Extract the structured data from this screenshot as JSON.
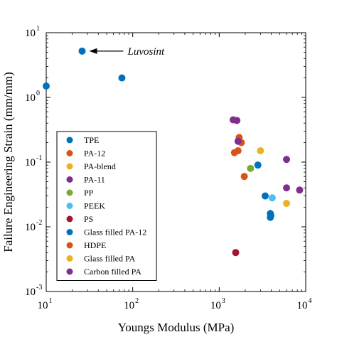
{
  "chart_data": {
    "type": "scatter",
    "title": "",
    "xlabel": "Youngs Modulus (MPa)",
    "ylabel": "Failure Engineering Strain (mm/mm)",
    "xscale": "log",
    "yscale": "log",
    "xlim": [
      10,
      10000
    ],
    "ylim": [
      0.001,
      10
    ],
    "grid": false,
    "legend_position": "bottom-left",
    "x_ticks": [
      {
        "base": "10",
        "exp": "1",
        "value": 10
      },
      {
        "base": "10",
        "exp": "2",
        "value": 100
      },
      {
        "base": "10",
        "exp": "3",
        "value": 1000
      },
      {
        "base": "10",
        "exp": "4",
        "value": 10000
      }
    ],
    "y_ticks": [
      {
        "base": "10",
        "exp": "-3",
        "value": 0.001
      },
      {
        "base": "10",
        "exp": "-2",
        "value": 0.01
      },
      {
        "base": "10",
        "exp": "-1",
        "value": 0.1
      },
      {
        "base": "10",
        "exp": "0",
        "value": 1
      },
      {
        "base": "10",
        "exp": "1",
        "value": 10
      }
    ],
    "annotation": {
      "text": "Luvosint",
      "x": 26,
      "y": 5.2
    },
    "series": [
      {
        "name": "TPE",
        "color": "#0072BD",
        "points": [
          [
            10,
            1.5
          ],
          [
            26,
            5.2
          ],
          [
            75,
            2.0
          ],
          [
            2800,
            0.09
          ]
        ]
      },
      {
        "name": "PA-12",
        "color": "#D95319",
        "points": [
          [
            1500,
            0.14
          ],
          [
            1650,
            0.15
          ],
          [
            1700,
            0.24
          ],
          [
            1800,
            0.2
          ]
        ]
      },
      {
        "name": "PA-blend",
        "color": "#EDB120",
        "points": [
          [
            3000,
            0.15
          ]
        ]
      },
      {
        "name": "PA-11",
        "color": "#7E2F8E",
        "points": [
          [
            1450,
            0.45
          ],
          [
            1600,
            0.44
          ],
          [
            1650,
            0.21
          ],
          [
            6000,
            0.11
          ],
          [
            6000,
            0.04
          ],
          [
            8500,
            0.037
          ]
        ]
      },
      {
        "name": "PP",
        "color": "#77AC30",
        "points": [
          [
            2300,
            0.08
          ]
        ]
      },
      {
        "name": "PEEK",
        "color": "#4DBEEE",
        "points": [
          [
            4100,
            0.028
          ]
        ]
      },
      {
        "name": "PS",
        "color": "#A2142F",
        "points": [
          [
            1550,
            0.004
          ]
        ]
      },
      {
        "name": "Glass filled PA-12",
        "color": "#0072BD",
        "points": [
          [
            3400,
            0.03
          ],
          [
            3900,
            0.016
          ],
          [
            3950,
            0.015
          ],
          [
            3900,
            0.014
          ]
        ]
      },
      {
        "name": "HDPE",
        "color": "#D95319",
        "points": [
          [
            1950,
            0.06
          ]
        ]
      },
      {
        "name": "Glass filled PA",
        "color": "#EDB120",
        "points": [
          [
            6000,
            0.023
          ]
        ]
      },
      {
        "name": "Carbon filled PA",
        "color": "#7E2F8E",
        "points": []
      }
    ]
  }
}
